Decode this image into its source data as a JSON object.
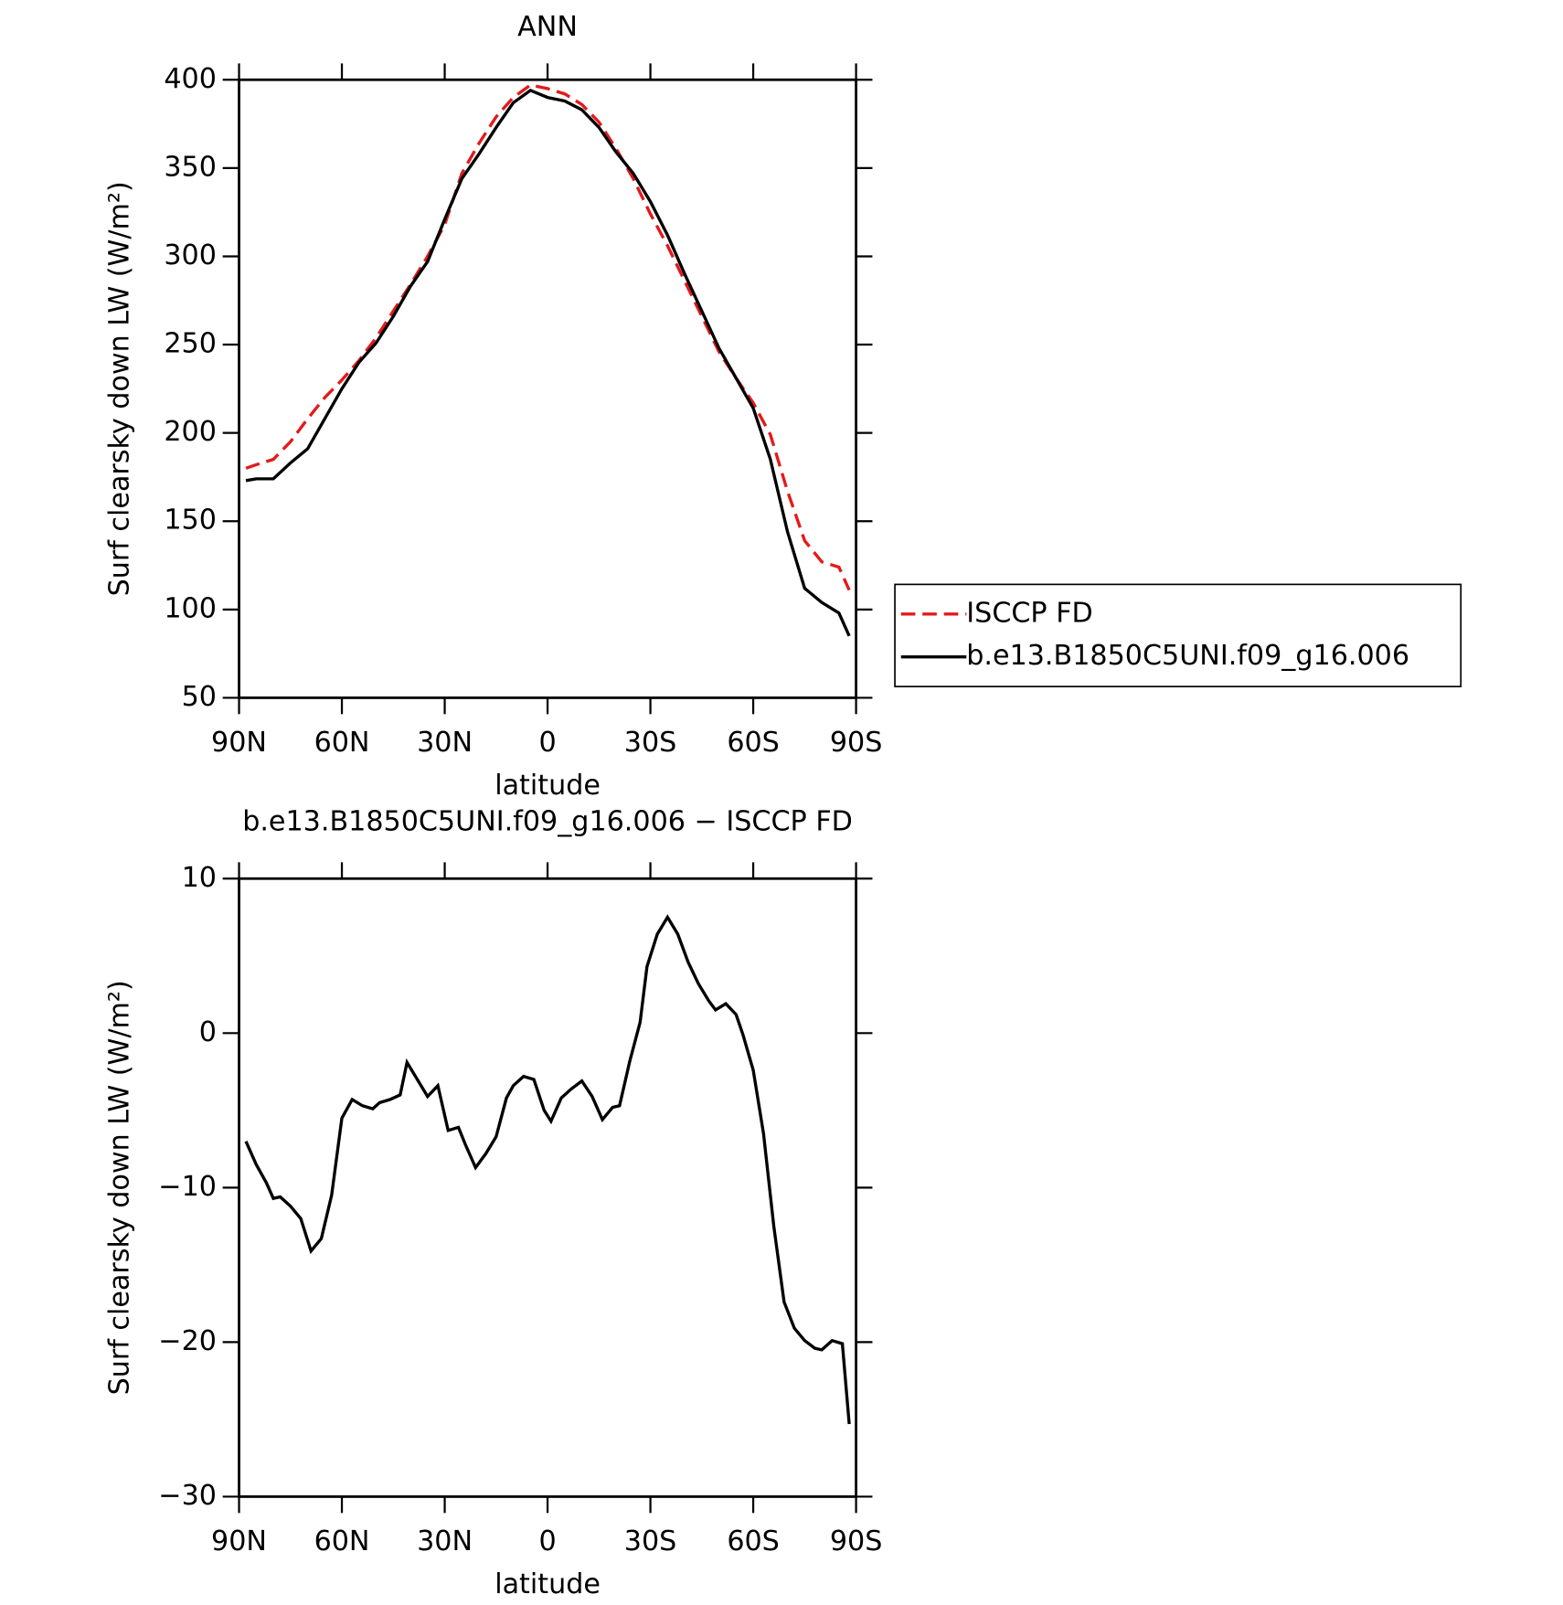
{
  "chart_data": [
    {
      "type": "line",
      "title": "ANN",
      "x_label": "latitude",
      "y_label": "Surf clearsky down LW (W/m²)",
      "xlim": [
        90,
        -90
      ],
      "xticks": [
        {
          "value": 90,
          "label": "90N"
        },
        {
          "value": 60,
          "label": "60N"
        },
        {
          "value": 30,
          "label": "30N"
        },
        0,
        {
          "value": -30,
          "label": "30S"
        },
        {
          "value": -60,
          "label": "60S"
        },
        {
          "value": -90,
          "label": "90S"
        }
      ],
      "ylim": [
        50,
        400
      ],
      "yticks": [
        50,
        100,
        150,
        200,
        250,
        300,
        350,
        400
      ],
      "legend": "right",
      "x": [
        88,
        85,
        80,
        75,
        70,
        65,
        60,
        55,
        50,
        45,
        40,
        35,
        30,
        25,
        20,
        15,
        10,
        5,
        0,
        -5,
        -10,
        -15,
        -20,
        -25,
        -30,
        -35,
        -40,
        -45,
        -50,
        -55,
        -60,
        -65,
        -70,
        -75,
        -80,
        -85,
        -88
      ],
      "series": [
        {
          "name": "ISCCP FD",
          "color": "#e31a1c",
          "dashed": true,
          "values": [
            180,
            182,
            185,
            195,
            208,
            220,
            230,
            241,
            254,
            269,
            284,
            300,
            318,
            347,
            364,
            379,
            390,
            397,
            395,
            392,
            386,
            376,
            361,
            344,
            324,
            306,
            286,
            266,
            246,
            231,
            217,
            199,
            167,
            139,
            127,
            124,
            111
          ]
        },
        {
          "name": "b.e13.B1850C5UNI.f09_g16.006",
          "color": "#000000",
          "dashed": false,
          "values": [
            173,
            174,
            174,
            183,
            191,
            208,
            225,
            240,
            251,
            266,
            283,
            297,
            321,
            344,
            358,
            373,
            387,
            394,
            390,
            388,
            383,
            373,
            359,
            347,
            331,
            312,
            290,
            269,
            248,
            231,
            214,
            185,
            144,
            112,
            104,
            98,
            85
          ]
        }
      ]
    },
    {
      "type": "line",
      "title": "b.e13.B1850C5UNI.f09_g16.006 − ISCCP FD",
      "x_label": "latitude",
      "y_label": "Surf clearsky down LW (W/m²)",
      "xlim": [
        90,
        -90
      ],
      "xticks": [
        {
          "value": 90,
          "label": "90N"
        },
        {
          "value": 60,
          "label": "60N"
        },
        {
          "value": 30,
          "label": "30N"
        },
        0,
        {
          "value": -30,
          "label": "30S"
        },
        {
          "value": -60,
          "label": "60S"
        },
        {
          "value": -90,
          "label": "90S"
        }
      ],
      "ylim": [
        -30,
        10
      ],
      "yticks": [
        {
          "value": -30,
          "label": "−30"
        },
        {
          "value": -20,
          "label": "−20"
        },
        {
          "value": -10,
          "label": "−10"
        },
        0,
        10
      ],
      "x": [
        88,
        85,
        82,
        80,
        78,
        75,
        72,
        69,
        66,
        63,
        60,
        57,
        54,
        51,
        49,
        46,
        43,
        41,
        38,
        35,
        32,
        29,
        26,
        24,
        21,
        18,
        15,
        12,
        10,
        7,
        4,
        1,
        -1,
        -4,
        -7,
        -10,
        -13,
        -16,
        -19,
        -21,
        -24,
        -27,
        -29,
        -32,
        -35,
        -38,
        -41,
        -44,
        -47,
        -49,
        -52,
        -55,
        -57,
        -60,
        -63,
        -66,
        -69,
        -72,
        -75,
        -78,
        -80,
        -83,
        -86,
        -88
      ],
      "series": [
        {
          "color": "#000000",
          "dashed": false,
          "values": [
            -7.0,
            -8.5,
            -9.7,
            -10.7,
            -10.6,
            -11.2,
            -12.0,
            -14.1,
            -13.3,
            -10.5,
            -5.5,
            -4.3,
            -4.7,
            -4.9,
            -4.5,
            -4.3,
            -4.0,
            -1.9,
            -3.0,
            -4.1,
            -3.4,
            -6.3,
            -6.1,
            -7.2,
            -8.7,
            -7.8,
            -6.7,
            -4.2,
            -3.4,
            -2.8,
            -3.0,
            -5.0,
            -5.7,
            -4.2,
            -3.6,
            -3.1,
            -4.1,
            -5.6,
            -4.8,
            -4.7,
            -1.8,
            0.7,
            4.3,
            6.4,
            7.5,
            6.4,
            4.6,
            3.2,
            2.1,
            1.5,
            1.9,
            1.2,
            -0.1,
            -2.4,
            -6.5,
            -12.5,
            -17.4,
            -19.1,
            -19.9,
            -20.4,
            -20.5,
            -19.9,
            -20.1,
            -25.3
          ]
        }
      ]
    }
  ]
}
